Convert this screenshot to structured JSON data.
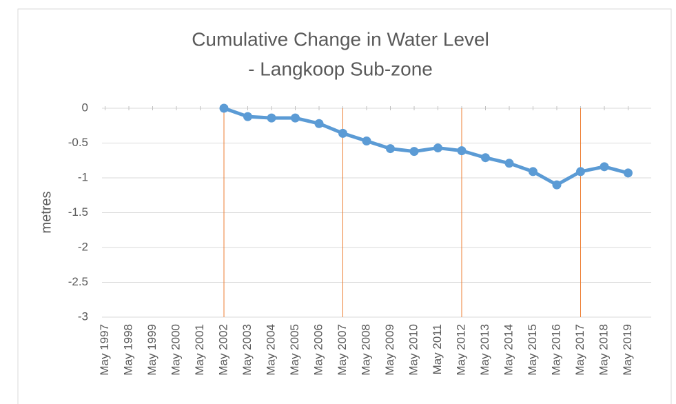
{
  "chart_data": {
    "type": "line",
    "title": [
      "Cumulative Change in Water Level",
      "- Langkoop Sub-zone"
    ],
    "y_label": "metres",
    "categories": [
      "May 1997",
      "May 1998",
      "May 1999",
      "May 2000",
      "May 2001",
      "May 2002",
      "May 2003",
      "May 2004",
      "May 2005",
      "May 2006",
      "May 2007",
      "May 2008",
      "May 2009",
      "May 2010",
      "May 2011",
      "May 2012",
      "May 2013",
      "May 2014",
      "May 2015",
      "May 2016",
      "May 2017",
      "May 2018",
      "May 2019"
    ],
    "series": [
      {
        "name": "Langkoop Sub-zone",
        "color": "#5b9bd5",
        "values": [
          null,
          null,
          null,
          null,
          null,
          0,
          -0.12,
          -0.14,
          -0.14,
          -0.22,
          -0.36,
          -0.47,
          -0.58,
          -0.62,
          -0.57,
          -0.61,
          -0.71,
          -0.79,
          -0.91,
          -1.1,
          -0.91,
          -0.84,
          -0.93
        ]
      }
    ],
    "ylim": [
      -3,
      0
    ],
    "yticks": [
      0,
      -0.5,
      -1,
      -1.5,
      -2,
      -2.5,
      -3
    ],
    "grid": true,
    "reference_lines": {
      "color": "#ed7d31",
      "at": [
        "May 2002",
        "May 2007",
        "May 2012",
        "May 2017"
      ]
    }
  }
}
